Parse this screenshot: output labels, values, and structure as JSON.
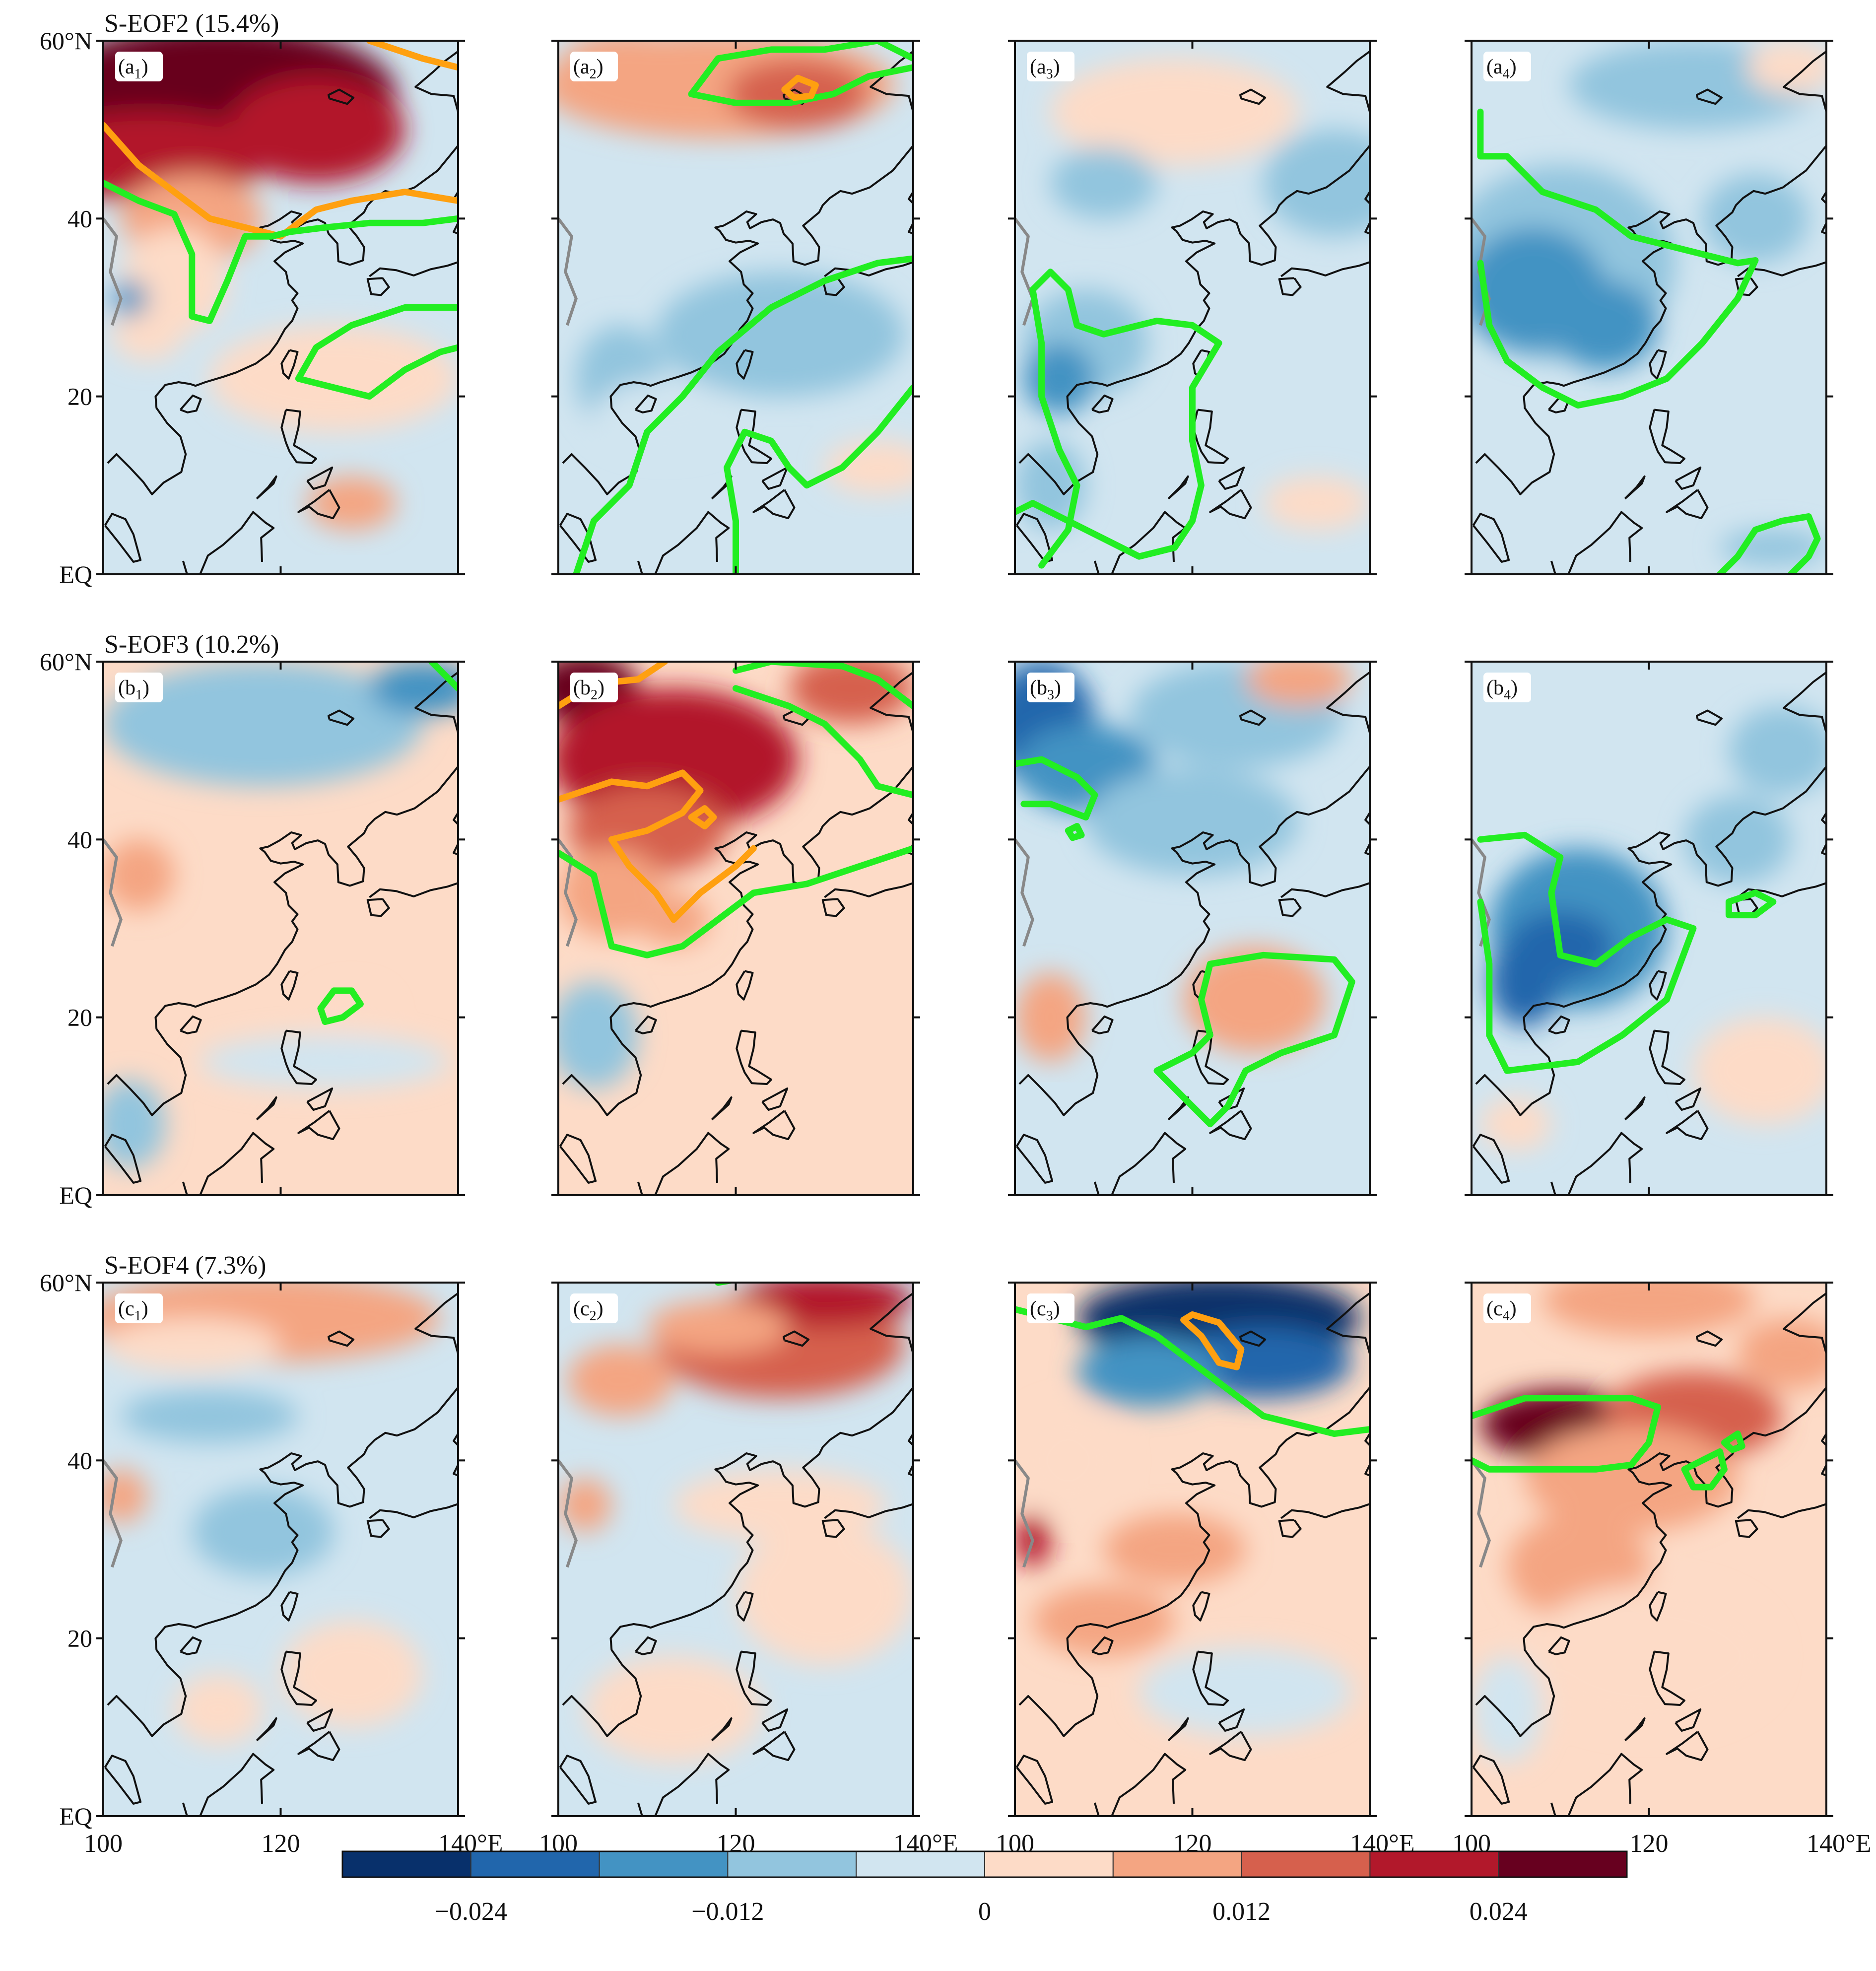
{
  "colors": {
    "scale": [
      "#08306b",
      "#2166ac",
      "#4393c3",
      "#92c5de",
      "#d1e5f0",
      "#fddbc7",
      "#f4a582",
      "#d6604d",
      "#b2182b",
      "#67001f"
    ],
    "contour_green": "#22ee22",
    "contour_orange": "#ffa010",
    "coast": "#111111",
    "lake": "#888888"
  },
  "chart_data": {
    "type": "heatmap",
    "projection": "lat-lon",
    "xlim": [
      100,
      140
    ],
    "ylim": [
      0,
      60
    ],
    "x_ticks": [
      100,
      120,
      140
    ],
    "y_ticks": [
      0,
      20,
      40,
      60
    ],
    "x_tick_labels": [
      "100",
      "120",
      "140°E"
    ],
    "y_tick_labels": [
      "EQ",
      "20",
      "40",
      "60°N"
    ],
    "rows": [
      {
        "title": "S-EOF2 (15.4%)",
        "panels": [
          {
            "label_base": "(a",
            "label_sub": "1",
            "label_close": ")"
          },
          {
            "label_base": "(a",
            "label_sub": "2",
            "label_close": ")"
          },
          {
            "label_base": "(a",
            "label_sub": "3",
            "label_close": ")"
          },
          {
            "label_base": "(a",
            "label_sub": "4",
            "label_close": ")"
          }
        ]
      },
      {
        "title": "S-EOF3 (10.2%)",
        "panels": [
          {
            "label_base": "(b",
            "label_sub": "1",
            "label_close": ")"
          },
          {
            "label_base": "(b",
            "label_sub": "2",
            "label_close": ")"
          },
          {
            "label_base": "(b",
            "label_sub": "3",
            "label_close": ")"
          },
          {
            "label_base": "(b",
            "label_sub": "4",
            "label_close": ")"
          }
        ]
      },
      {
        "title": "S-EOF4 (7.3%)",
        "panels": [
          {
            "label_base": "(c",
            "label_sub": "1",
            "label_close": ")"
          },
          {
            "label_base": "(c",
            "label_sub": "2",
            "label_close": ")"
          },
          {
            "label_base": "(c",
            "label_sub": "3",
            "label_close": ")"
          },
          {
            "label_base": "(c",
            "label_sub": "4",
            "label_close": ")"
          }
        ]
      }
    ],
    "colorbar": {
      "min": -0.03,
      "max": 0.03,
      "step": 0.006,
      "ticks": [
        -0.024,
        -0.012,
        0,
        0.012,
        0.024
      ],
      "tick_labels": [
        "−0.024",
        "−0.012",
        "0",
        "0.012",
        "0.024"
      ]
    }
  }
}
